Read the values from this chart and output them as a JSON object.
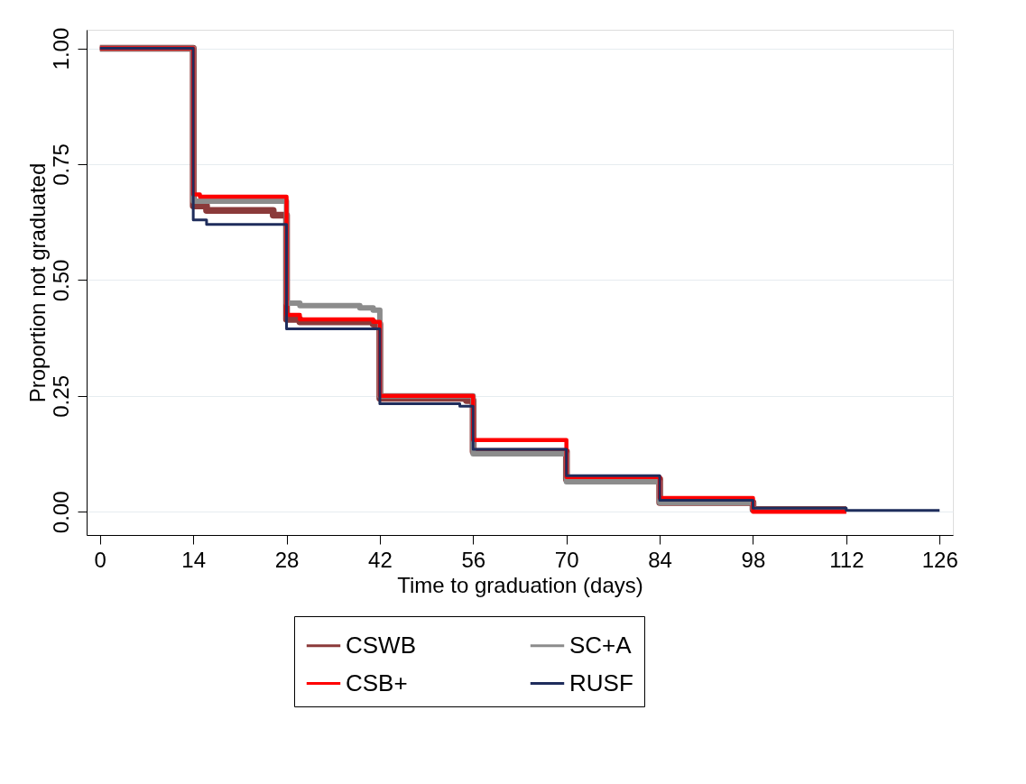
{
  "chart_data": {
    "type": "step",
    "xlabel": "Time to graduation (days)",
    "ylabel": "Proportion not graduated",
    "xlim": [
      -2,
      128
    ],
    "xticks": [
      0,
      14,
      28,
      42,
      56,
      70,
      84,
      98,
      112,
      126
    ],
    "ylim": [
      -0.05,
      1.04
    ],
    "yticks": [
      {
        "value": 0,
        "label": "0.00"
      },
      {
        "value": 0.25,
        "label": "0.25"
      },
      {
        "value": 0.5,
        "label": "0.50"
      },
      {
        "value": 0.75,
        "label": "0.75"
      },
      {
        "value": 1,
        "label": "1.00"
      }
    ],
    "grid": "y",
    "legend": "bottom",
    "line_style": "solid",
    "marker": "none",
    "series": [
      {
        "name": "CSWB",
        "color": "#8b3a3a",
        "x": [
          0,
          14,
          16,
          26,
          28,
          30,
          41,
          42,
          55,
          56,
          70,
          84,
          98,
          112
        ],
        "values": [
          1,
          0.66,
          0.65,
          0.64,
          0.415,
          0.41,
          0.405,
          0.245,
          0.24,
          0.13,
          0.07,
          0.02,
          0.005,
          0.005
        ]
      },
      {
        "name": "SC+A",
        "color": "#8c8c8c",
        "x": [
          0,
          14,
          28,
          30,
          39,
          41,
          42,
          56,
          70,
          84,
          98,
          112
        ],
        "values": [
          1,
          0.67,
          0.45,
          0.445,
          0.44,
          0.435,
          0.25,
          0.125,
          0.065,
          0.02,
          0.005,
          0.005
        ]
      },
      {
        "name": "CSB+",
        "color": "#ff0000",
        "x": [
          0,
          14,
          15,
          28,
          30,
          41,
          42,
          56,
          70,
          84,
          98,
          112
        ],
        "values": [
          1,
          0.685,
          0.68,
          0.425,
          0.415,
          0.41,
          0.25,
          0.155,
          0.075,
          0.03,
          0.0,
          0.0
        ]
      },
      {
        "name": "RUSF",
        "color": "#1f2d5c",
        "x": [
          0,
          14,
          16,
          28,
          42,
          54,
          56,
          70,
          84,
          98,
          112,
          126
        ],
        "values": [
          1,
          0.63,
          0.62,
          0.395,
          0.233,
          0.228,
          0.135,
          0.078,
          0.025,
          0.008,
          0.003,
          0.003
        ]
      }
    ]
  }
}
